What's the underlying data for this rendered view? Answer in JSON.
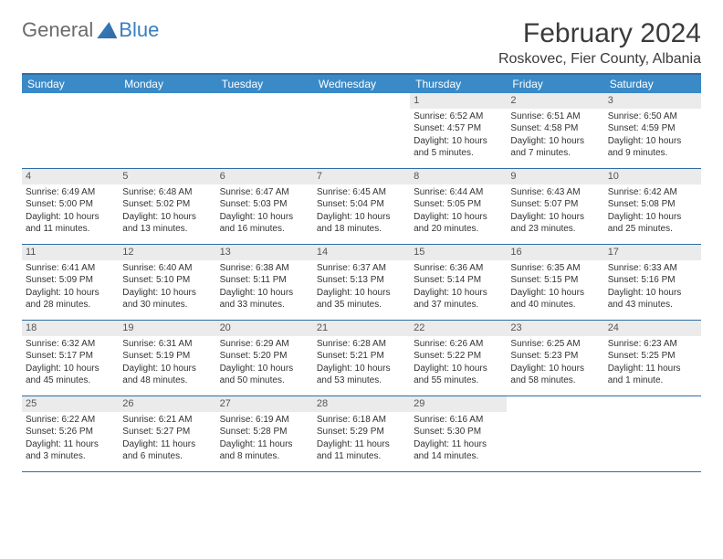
{
  "logo": {
    "general": "General",
    "blue": "Blue"
  },
  "header": {
    "month_title": "February 2024",
    "location": "Roskovec, Fier County, Albania"
  },
  "colors": {
    "header_bar": "#3a8ac8",
    "border": "#2e6da4",
    "daynum_bg": "#ebebeb",
    "text": "#333333",
    "logo_gray": "#6b6b6b",
    "logo_blue": "#3a7ebf",
    "background": "#ffffff",
    "weekday_fontsize": 12,
    "cell_fontsize": 10,
    "title_fontsize": 30,
    "location_fontsize": 16
  },
  "weekdays": [
    "Sunday",
    "Monday",
    "Tuesday",
    "Wednesday",
    "Thursday",
    "Friday",
    "Saturday"
  ],
  "weeks": [
    [
      {
        "day": "",
        "text": ""
      },
      {
        "day": "",
        "text": ""
      },
      {
        "day": "",
        "text": ""
      },
      {
        "day": "",
        "text": ""
      },
      {
        "day": "1",
        "text": "Sunrise: 6:52 AM\nSunset: 4:57 PM\nDaylight: 10 hours and 5 minutes."
      },
      {
        "day": "2",
        "text": "Sunrise: 6:51 AM\nSunset: 4:58 PM\nDaylight: 10 hours and 7 minutes."
      },
      {
        "day": "3",
        "text": "Sunrise: 6:50 AM\nSunset: 4:59 PM\nDaylight: 10 hours and 9 minutes."
      }
    ],
    [
      {
        "day": "4",
        "text": "Sunrise: 6:49 AM\nSunset: 5:00 PM\nDaylight: 10 hours and 11 minutes."
      },
      {
        "day": "5",
        "text": "Sunrise: 6:48 AM\nSunset: 5:02 PM\nDaylight: 10 hours and 13 minutes."
      },
      {
        "day": "6",
        "text": "Sunrise: 6:47 AM\nSunset: 5:03 PM\nDaylight: 10 hours and 16 minutes."
      },
      {
        "day": "7",
        "text": "Sunrise: 6:45 AM\nSunset: 5:04 PM\nDaylight: 10 hours and 18 minutes."
      },
      {
        "day": "8",
        "text": "Sunrise: 6:44 AM\nSunset: 5:05 PM\nDaylight: 10 hours and 20 minutes."
      },
      {
        "day": "9",
        "text": "Sunrise: 6:43 AM\nSunset: 5:07 PM\nDaylight: 10 hours and 23 minutes."
      },
      {
        "day": "10",
        "text": "Sunrise: 6:42 AM\nSunset: 5:08 PM\nDaylight: 10 hours and 25 minutes."
      }
    ],
    [
      {
        "day": "11",
        "text": "Sunrise: 6:41 AM\nSunset: 5:09 PM\nDaylight: 10 hours and 28 minutes."
      },
      {
        "day": "12",
        "text": "Sunrise: 6:40 AM\nSunset: 5:10 PM\nDaylight: 10 hours and 30 minutes."
      },
      {
        "day": "13",
        "text": "Sunrise: 6:38 AM\nSunset: 5:11 PM\nDaylight: 10 hours and 33 minutes."
      },
      {
        "day": "14",
        "text": "Sunrise: 6:37 AM\nSunset: 5:13 PM\nDaylight: 10 hours and 35 minutes."
      },
      {
        "day": "15",
        "text": "Sunrise: 6:36 AM\nSunset: 5:14 PM\nDaylight: 10 hours and 37 minutes."
      },
      {
        "day": "16",
        "text": "Sunrise: 6:35 AM\nSunset: 5:15 PM\nDaylight: 10 hours and 40 minutes."
      },
      {
        "day": "17",
        "text": "Sunrise: 6:33 AM\nSunset: 5:16 PM\nDaylight: 10 hours and 43 minutes."
      }
    ],
    [
      {
        "day": "18",
        "text": "Sunrise: 6:32 AM\nSunset: 5:17 PM\nDaylight: 10 hours and 45 minutes."
      },
      {
        "day": "19",
        "text": "Sunrise: 6:31 AM\nSunset: 5:19 PM\nDaylight: 10 hours and 48 minutes."
      },
      {
        "day": "20",
        "text": "Sunrise: 6:29 AM\nSunset: 5:20 PM\nDaylight: 10 hours and 50 minutes."
      },
      {
        "day": "21",
        "text": "Sunrise: 6:28 AM\nSunset: 5:21 PM\nDaylight: 10 hours and 53 minutes."
      },
      {
        "day": "22",
        "text": "Sunrise: 6:26 AM\nSunset: 5:22 PM\nDaylight: 10 hours and 55 minutes."
      },
      {
        "day": "23",
        "text": "Sunrise: 6:25 AM\nSunset: 5:23 PM\nDaylight: 10 hours and 58 minutes."
      },
      {
        "day": "24",
        "text": "Sunrise: 6:23 AM\nSunset: 5:25 PM\nDaylight: 11 hours and 1 minute."
      }
    ],
    [
      {
        "day": "25",
        "text": "Sunrise: 6:22 AM\nSunset: 5:26 PM\nDaylight: 11 hours and 3 minutes."
      },
      {
        "day": "26",
        "text": "Sunrise: 6:21 AM\nSunset: 5:27 PM\nDaylight: 11 hours and 6 minutes."
      },
      {
        "day": "27",
        "text": "Sunrise: 6:19 AM\nSunset: 5:28 PM\nDaylight: 11 hours and 8 minutes."
      },
      {
        "day": "28",
        "text": "Sunrise: 6:18 AM\nSunset: 5:29 PM\nDaylight: 11 hours and 11 minutes."
      },
      {
        "day": "29",
        "text": "Sunrise: 6:16 AM\nSunset: 5:30 PM\nDaylight: 11 hours and 14 minutes."
      },
      {
        "day": "",
        "text": ""
      },
      {
        "day": "",
        "text": ""
      }
    ]
  ]
}
